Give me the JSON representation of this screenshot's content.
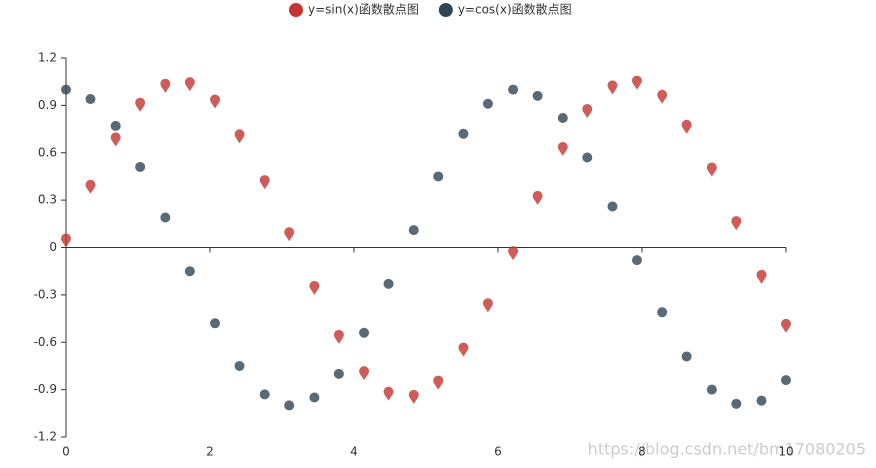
{
  "chart_data": {
    "type": "scatter",
    "x": [
      0,
      0.34,
      0.69,
      1.03,
      1.38,
      1.72,
      2.07,
      2.41,
      2.76,
      3.1,
      3.45,
      3.79,
      4.14,
      4.48,
      4.83,
      5.17,
      5.52,
      5.86,
      6.21,
      6.55,
      6.9,
      7.24,
      7.59,
      7.93,
      8.28,
      8.62,
      8.97,
      9.31,
      9.66,
      10
    ],
    "series": [
      {
        "name": "y=sin(x)函数散点图",
        "color": "#c23531",
        "marker": "pin",
        "values": [
          0,
          0.34,
          0.64,
          0.86,
          0.98,
          0.99,
          0.88,
          0.66,
          0.37,
          0.04,
          -0.3,
          -0.61,
          -0.84,
          -0.97,
          -0.99,
          -0.9,
          -0.69,
          -0.41,
          -0.08,
          0.27,
          0.58,
          0.82,
          0.97,
          1.0,
          0.91,
          0.72,
          0.45,
          0.11,
          -0.23,
          -0.54
        ]
      },
      {
        "name": "y=cos(x)函数散点图",
        "color": "#2f4554",
        "marker": "circle",
        "values": [
          1,
          0.94,
          0.77,
          0.51,
          0.19,
          -0.15,
          -0.48,
          -0.75,
          -0.93,
          -1.0,
          -0.95,
          -0.8,
          -0.54,
          -0.23,
          0.11,
          0.45,
          0.72,
          0.91,
          1.0,
          0.96,
          0.82,
          0.57,
          0.26,
          -0.08,
          -0.41,
          -0.69,
          -0.9,
          -0.99,
          -0.97,
          -0.84
        ]
      }
    ],
    "xlim": [
      0,
      10
    ],
    "xticks": [
      0,
      2,
      4,
      6,
      8,
      10
    ],
    "ylim": [
      -1.2,
      1.2
    ],
    "yticks": [
      -1.2,
      -0.9,
      -0.6,
      -0.3,
      0,
      0.3,
      0.6,
      0.9,
      1.2
    ],
    "grid": false,
    "legend": "top",
    "watermark": "https://blog.csdn.net/bm17080205"
  }
}
